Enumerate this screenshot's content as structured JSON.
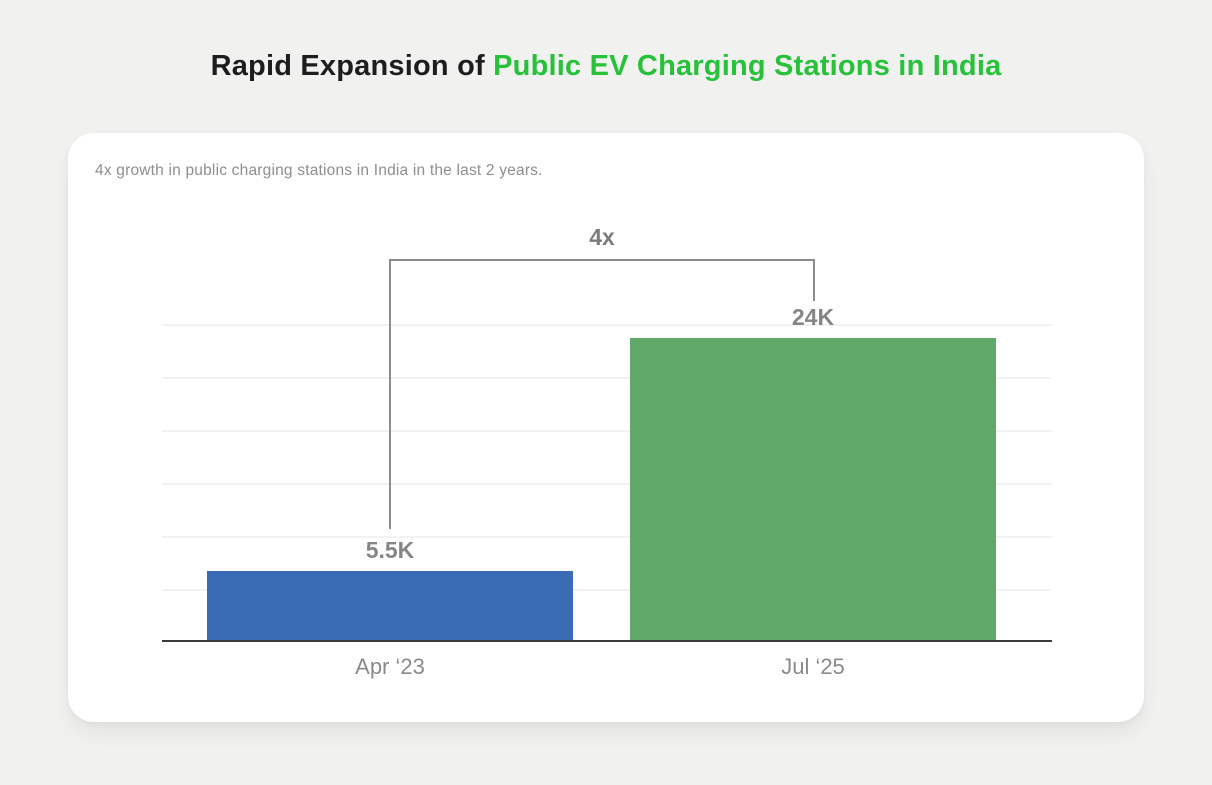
{
  "page": {
    "title_prefix": "Rapid Expansion of ",
    "title_highlight": "Public EV Charging Stations in India"
  },
  "card": {
    "subtitle": "4x growth in public charging stations in India in the last 2 years."
  },
  "chart_data": {
    "type": "bar",
    "title": "Rapid Expansion of Public EV Charging Stations in India",
    "subtitle": "4x growth in public charging stations in India in the last 2 years.",
    "categories": [
      "Apr ‘23",
      "Jul ‘25"
    ],
    "values": [
      5500,
      24000
    ],
    "value_labels": [
      "5.5K",
      "24K"
    ],
    "series": [
      {
        "name": "Public EV charging stations",
        "values": [
          5500,
          24000
        ]
      }
    ],
    "bar_colors": [
      "#3a6cb5",
      "#5fa96a"
    ],
    "annotation": "4x",
    "xlabel": "",
    "ylabel": "",
    "ylim": [
      0,
      26000
    ],
    "gridlines": "horizontal-faint",
    "legend": "none"
  },
  "colors": {
    "background": "#f1f1ef",
    "card_background": "#ffffff",
    "title_text": "#1d1d1f",
    "title_highlight": "#27c13a",
    "subtitle_text": "#8e8e8e",
    "value_label_text": "#858585",
    "category_label_text": "#8a8a8b",
    "bar_blue": "#3a6cb5",
    "bar_green": "#5fa96a",
    "gridline": "#f2f2f1",
    "axis_line": "#3c3c3c",
    "bracket_line": "#8c8c8c"
  }
}
